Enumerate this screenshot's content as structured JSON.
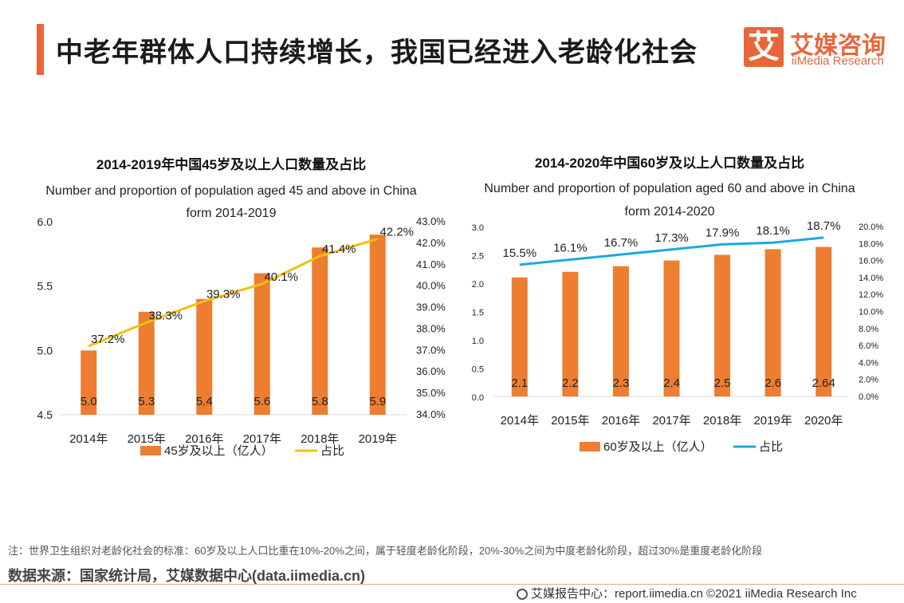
{
  "header": {
    "title": "中老年群体人口持续增长，我国已经进入老龄化社会",
    "logo_mark": "艾",
    "logo_cn": "艾媒咨询",
    "logo_en": "iiMedia Research"
  },
  "chart_data": [
    {
      "type": "bar",
      "title": "2014-2019年中国45岁及以上人口数量及占比",
      "subtitle_line1": "Number and proportion of population aged 45 and above in China",
      "subtitle_line2": "form 2014-2019",
      "categories": [
        "2014年",
        "2015年",
        "2016年",
        "2017年",
        "2018年",
        "2019年"
      ],
      "series": [
        {
          "name": "45岁及以上（亿人）",
          "kind": "bar",
          "axis": "left",
          "values": [
            5.0,
            5.3,
            5.4,
            5.6,
            5.8,
            5.9
          ],
          "labels": [
            "5.0",
            "5.3",
            "5.4",
            "5.6",
            "5.8",
            "5.9"
          ],
          "color": "#ed7d31"
        },
        {
          "name": "占比",
          "kind": "line",
          "axis": "right",
          "values": [
            37.2,
            38.3,
            39.3,
            40.1,
            41.4,
            42.2
          ],
          "labels": [
            "37.2%",
            "38.3%",
            "39.3%",
            "40.1%",
            "41.4%",
            "42.2%"
          ],
          "color": "#f2c012"
        }
      ],
      "ylim": [
        4.5,
        6.0
      ],
      "yticks": [
        "4.5",
        "5.0",
        "5.5",
        "6.0"
      ],
      "y2lim": [
        34.0,
        43.0
      ],
      "y2ticks": [
        "34.0%",
        "35.0%",
        "36.0%",
        "37.0%",
        "38.0%",
        "39.0%",
        "40.0%",
        "41.0%",
        "42.0%",
        "43.0%"
      ],
      "grid": false,
      "legend": "bottom"
    },
    {
      "type": "bar",
      "title": "2014-2020年中国60岁及以上人口数量及占比",
      "subtitle_line1": "Number and proportion of population aged 60 and above in China",
      "subtitle_line2": "form 2014-2020",
      "categories": [
        "2014年",
        "2015年",
        "2016年",
        "2017年",
        "2018年",
        "2019年",
        "2020年"
      ],
      "series": [
        {
          "name": "60岁及以上（亿人）",
          "kind": "bar",
          "axis": "left",
          "values": [
            2.1,
            2.2,
            2.3,
            2.4,
            2.5,
            2.6,
            2.64
          ],
          "labels": [
            "2.1",
            "2.2",
            "2.3",
            "2.4",
            "2.5",
            "2.6",
            "2.64"
          ],
          "color": "#ed7d31"
        },
        {
          "name": "占比",
          "kind": "line",
          "axis": "right",
          "values": [
            15.5,
            16.1,
            16.7,
            17.3,
            17.9,
            18.1,
            18.7
          ],
          "labels": [
            "15.5%",
            "16.1%",
            "16.7%",
            "17.3%",
            "17.9%",
            "18.1%",
            "18.7%"
          ],
          "color": "#1ea7e1"
        }
      ],
      "ylim": [
        0.0,
        3.0
      ],
      "yticks": [
        "0.0",
        "0.5",
        "1.0",
        "1.5",
        "2.0",
        "2.5",
        "3.0"
      ],
      "y2lim": [
        0.0,
        20.0
      ],
      "y2ticks": [
        "0.0%",
        "2.0%",
        "4.0%",
        "6.0%",
        "8.0%",
        "10.0%",
        "12.0%",
        "14.0%",
        "16.0%",
        "18.0%",
        "20.0%"
      ],
      "grid": false,
      "legend": "bottom"
    }
  ],
  "note": "注：世界卫生组织对老龄化社会的标准：60岁及以上人口比重在10%-20%之间，属于轻度老龄化阶段，20%-30%之间为中度老龄化阶段，超过30%是重度老龄化阶段",
  "source": "数据来源：国家统计局，艾媒数据中心(data.iimedia.cn)",
  "footer": "艾媒报告中心：report.iimedia.cn  ©2021  iiMedia Research  Inc"
}
